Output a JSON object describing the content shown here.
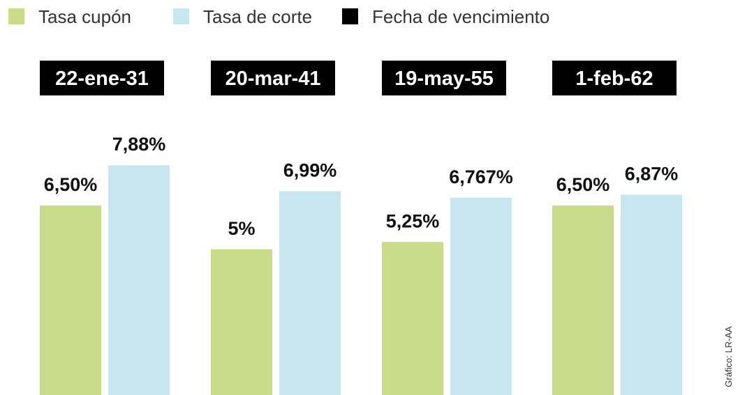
{
  "colors": {
    "coupon": "#c8dc8a",
    "cut": "#c8e6f0",
    "maturity": "#000000"
  },
  "legend": [
    {
      "label": "Tasa cupón",
      "color": "#c8dc8a"
    },
    {
      "label": "Tasa de corte",
      "color": "#c8e6f0"
    },
    {
      "label": "Fecha de vencimiento",
      "color": "#000000"
    }
  ],
  "credit": "Gráfico: LR-AA",
  "chart_data": {
    "type": "bar",
    "categories": [
      "22-ene-31",
      "20-mar-41",
      "19-may-55",
      "1-feb-62"
    ],
    "series": [
      {
        "name": "Tasa cupón",
        "values": [
          6.5,
          5.0,
          5.25,
          6.5
        ],
        "labels": [
          "6,50%",
          "5%",
          "5,25%",
          "6,50%"
        ]
      },
      {
        "name": "Tasa de corte",
        "values": [
          7.88,
          6.99,
          6.767,
          6.87
        ],
        "labels": [
          "7,88%",
          "6,99%",
          "6,767%",
          "6,87%"
        ]
      }
    ],
    "legend_position": "top-left",
    "grid": false
  }
}
